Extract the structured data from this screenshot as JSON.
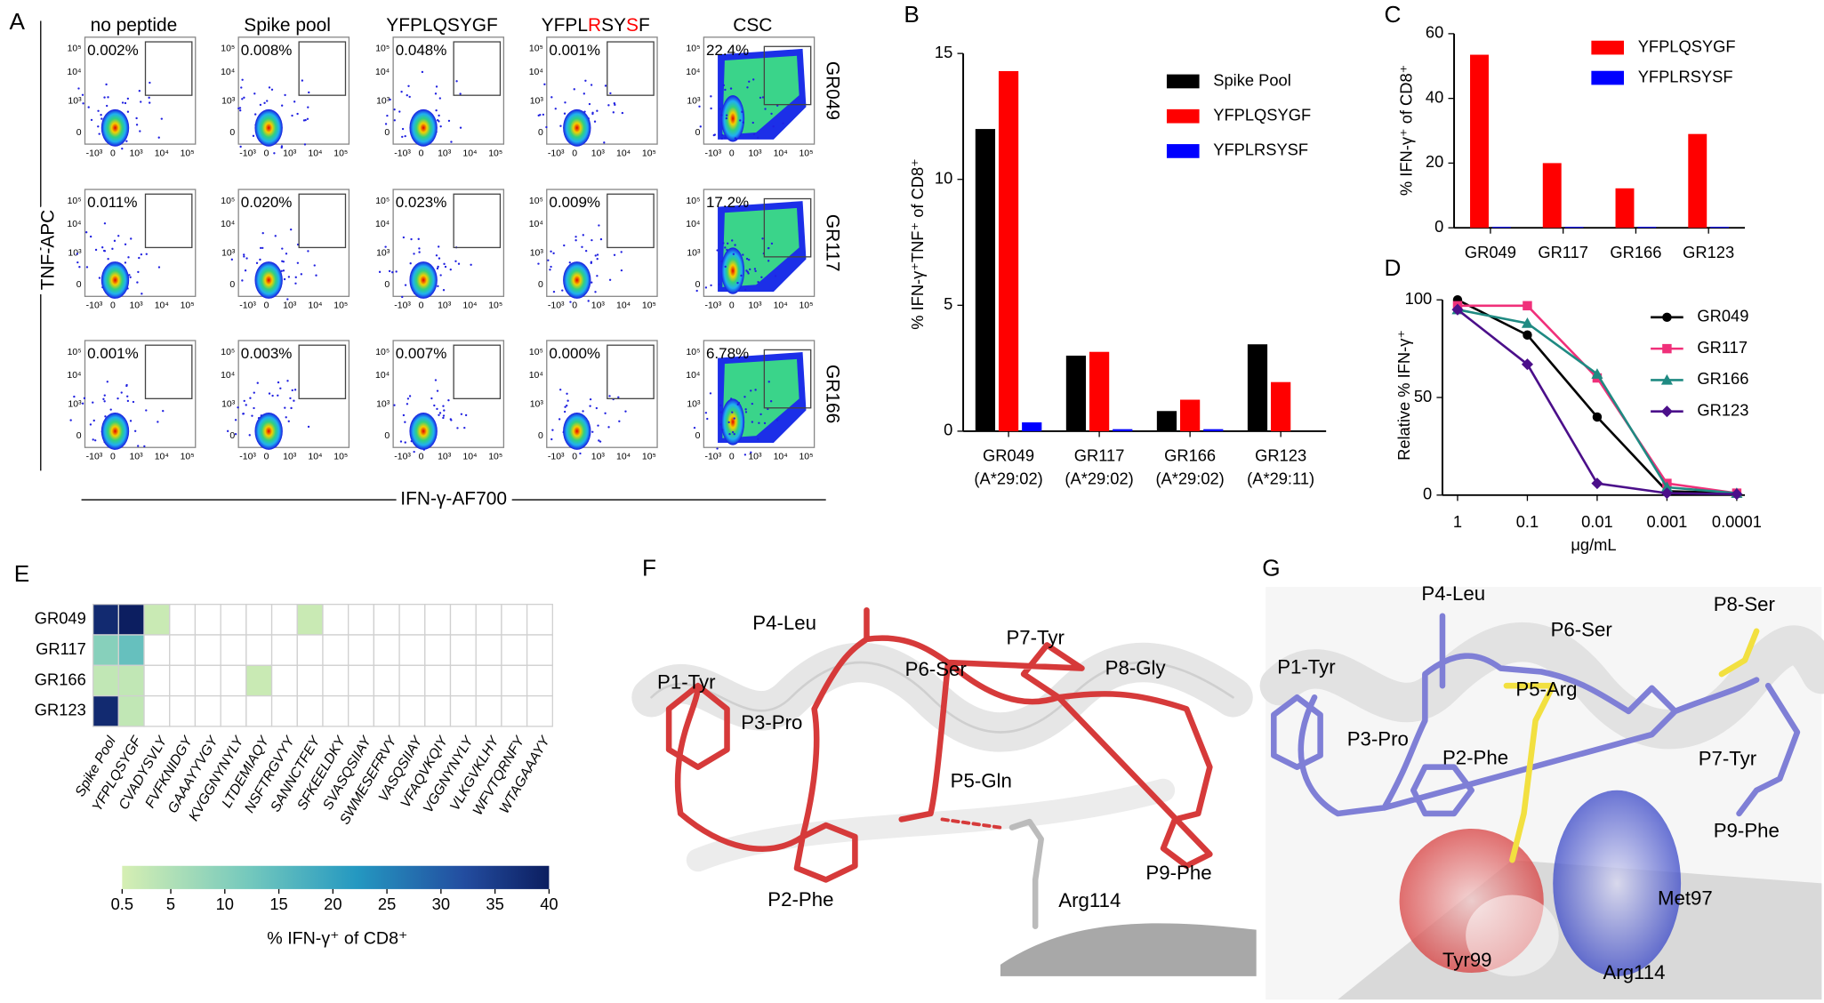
{
  "panel_letters": [
    "A",
    "B",
    "C",
    "D",
    "E",
    "F",
    "G"
  ],
  "panel_A": {
    "columns": [
      [
        "no peptide"
      ],
      [
        "Spike pool"
      ],
      [
        "YFPLQSYGF"
      ],
      [
        "YFPL",
        "R",
        "SY",
        "S",
        "F"
      ],
      [
        "CSC"
      ]
    ],
    "rows": [
      "GR049",
      "GR117",
      "GR166"
    ],
    "gate_percents": [
      [
        "0.002%",
        "0.008%",
        "0.048%",
        "0.001%",
        "22.4%"
      ],
      [
        "0.011%",
        "0.020%",
        "0.023%",
        "0.009%",
        "17.2%"
      ],
      [
        "0.001%",
        "0.003%",
        "0.007%",
        "0.000%",
        "6.78%"
      ]
    ],
    "y_label": "TNF-APC",
    "x_label": "IFN-γ-AF700",
    "y_ticks": [
      "10⁵",
      "10⁴",
      "10³",
      "0"
    ],
    "x_ticks": [
      "-10³",
      "0",
      "10³",
      "10⁴",
      "10⁵"
    ]
  },
  "chart_data": [
    {
      "type": "bar",
      "ylabel": "% IFN-γ⁺TNF⁺ of CD8⁺",
      "categories": [
        [
          "GR049",
          "(A*29:02)"
        ],
        [
          "GR117",
          "(A*29:02)"
        ],
        [
          "GR166",
          "(A*29:02)"
        ],
        [
          "GR123",
          "(A*29:11)"
        ]
      ],
      "series": [
        {
          "name": "Spike Pool",
          "color": "#000000",
          "values": [
            12.0,
            3.0,
            0.8,
            3.45
          ]
        },
        {
          "name": "YFPLQSYGF",
          "color": "#ff0000",
          "values": [
            14.3,
            3.15,
            1.25,
            1.95
          ]
        },
        {
          "name": "YFPLRSYSF",
          "color": "#0000ff",
          "values": [
            0.35,
            0.08,
            0.08,
            0
          ]
        }
      ],
      "ylim": [
        0,
        15
      ],
      "yticks": [
        0,
        5,
        10,
        15
      ],
      "legend": "upper right"
    },
    {
      "type": "bar",
      "ylabel": "% IFN-γ⁺ of CD8⁺",
      "categories": [
        [
          "GR049"
        ],
        [
          "GR117"
        ],
        [
          "GR166"
        ],
        [
          "GR123"
        ]
      ],
      "series": [
        {
          "name": "YFPLQSYGF",
          "color": "#ff0000",
          "values": [
            53.5,
            20,
            12.2,
            29
          ]
        },
        {
          "name": "YFPLRSYSF",
          "color": "#0000ff",
          "values": [
            0.3,
            0.3,
            0.3,
            0.3
          ]
        }
      ],
      "ylim": [
        0,
        60
      ],
      "yticks": [
        0,
        20,
        40,
        60
      ],
      "legend": "upper right"
    },
    {
      "type": "line",
      "ylabel": "Relative % IFN-γ⁺",
      "xlabel": "μg/mL",
      "x": [
        1,
        0.1,
        0.01,
        0.001,
        0.0001
      ],
      "xlim": [
        1,
        0.0001
      ],
      "xticks": [
        1,
        0.1,
        0.01,
        0.001,
        0.0001
      ],
      "xscale": "log",
      "series": [
        {
          "name": "GR049",
          "color": "#000000",
          "marker": "circle",
          "values": [
            100,
            82,
            40,
            2,
            1
          ]
        },
        {
          "name": "GR117",
          "color": "#f0307a",
          "marker": "square",
          "values": [
            97,
            97,
            60,
            6,
            1
          ]
        },
        {
          "name": "GR166",
          "color": "#1f8a82",
          "marker": "triangle",
          "values": [
            95,
            88,
            62,
            4,
            1
          ]
        },
        {
          "name": "GR123",
          "color": "#4b0f8a",
          "marker": "diamond",
          "values": [
            95,
            67,
            6,
            1,
            0.5
          ]
        }
      ],
      "ylim": [
        0,
        100
      ],
      "yticks": [
        0,
        50,
        100
      ],
      "legend": "upper right"
    },
    {
      "type": "heatmap",
      "rows": [
        "GR049",
        "GR117",
        "GR166",
        "GR123"
      ],
      "columns": [
        "Spike Pool",
        "YFPLQSYGF",
        "CVADYSVLY",
        "FVFKNIDGY",
        "GAAAYYVGY",
        "KVGGNYNYLY",
        "LTDEMIAQY",
        "NSFTRGVYY",
        "SANNCTFEY",
        "SFKEELDKY",
        "SVASQSIIAY",
        "SWMESEFRVY",
        "VASQSIIAY",
        "VFAQVKQIY",
        "VGGNYNYLY",
        "VLKGVKLHY",
        "WFVTQRNFY",
        "WTAGAAAYY"
      ],
      "values": [
        [
          38,
          40,
          2,
          0,
          0,
          0,
          0,
          0,
          2,
          0,
          0,
          0,
          0,
          0,
          0,
          0,
          0,
          0
        ],
        [
          10,
          14,
          0,
          0,
          0,
          0,
          0,
          0,
          0,
          0,
          0,
          0,
          0,
          0,
          0,
          0,
          0,
          0
        ],
        [
          3,
          3,
          0,
          0,
          0,
          0,
          2,
          0,
          0,
          0,
          0,
          0,
          0,
          0,
          0,
          0,
          0,
          0
        ],
        [
          38,
          3,
          0,
          0,
          0,
          0,
          0,
          0,
          0,
          0,
          0,
          0,
          0,
          0,
          0,
          0,
          0,
          0
        ]
      ],
      "colorbar": {
        "lim": [
          0.5,
          40
        ],
        "ticks": [
          0.5,
          5,
          10,
          15,
          20,
          25,
          30,
          35,
          40
        ],
        "label": "% IFN-γ⁺ of CD8⁺"
      }
    }
  ],
  "panel_F": {
    "labels": [
      "P1-Tyr",
      "P4-Leu",
      "P3-Pro",
      "P6-Ser",
      "P7-Tyr",
      "P8-Gly",
      "P5-Gln",
      "P2-Phe",
      "P9-Phe",
      "Arg114"
    ]
  },
  "panel_G": {
    "labels": [
      "P4-Leu",
      "P1-Tyr",
      "P6-Ser",
      "P8-Ser",
      "P5-Arg",
      "P3-Pro",
      "P2-Phe",
      "P7-Tyr",
      "P9-Phe",
      "Met97",
      "Tyr99",
      "Arg114"
    ]
  }
}
